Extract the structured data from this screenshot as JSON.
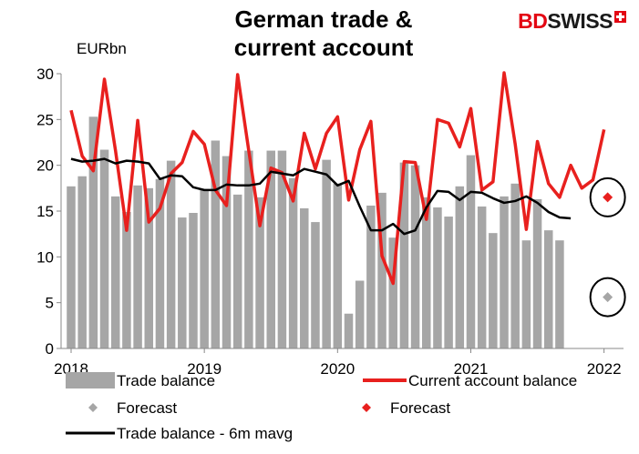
{
  "header": {
    "title_line1": "German trade &",
    "title_line2": "current account",
    "brand_part1": "BD",
    "brand_part2": "SWISS",
    "unit": "EURbn"
  },
  "colors": {
    "bar": "#a6a6a6",
    "current_account": "#e8201e",
    "mavg": "#000000",
    "forecast_trade": "#a6a6a6",
    "forecast_ca": "#e8201e",
    "brand": "#e30613"
  },
  "chart_data": {
    "type": "bar",
    "ylim": [
      0,
      30
    ],
    "yticks": [
      0,
      5,
      10,
      15,
      20,
      25,
      30
    ],
    "xticks": [
      {
        "label": "2018",
        "index": 0
      },
      {
        "label": "2019",
        "index": 12
      },
      {
        "label": "2020",
        "index": 24
      },
      {
        "label": "2021",
        "index": 36
      },
      {
        "label": "2022",
        "index": 48
      }
    ],
    "series": [
      {
        "name": "Trade balance",
        "kind": "bar",
        "values": [
          17.7,
          18.8,
          25.3,
          21.7,
          16.6,
          14.9,
          17.8,
          17.5,
          18.5,
          20.5,
          14.3,
          14.8,
          17.4,
          22.7,
          21.0,
          16.8,
          21.6,
          16.5,
          21.6,
          21.6,
          18.6,
          15.3,
          13.8,
          20.6,
          18.0,
          3.8,
          7.4,
          15.6,
          17.0,
          12.1,
          20.3,
          20.0,
          16.5,
          15.4,
          14.4,
          17.7,
          21.1,
          15.5,
          12.6,
          16.6,
          18.0,
          11.8,
          16.3,
          12.9,
          11.8
        ]
      },
      {
        "name": "Current account balance",
        "kind": "line",
        "values": [
          26.0,
          21.0,
          19.4,
          29.4,
          21.6,
          12.9,
          24.9,
          13.8,
          15.3,
          19.1,
          20.3,
          23.7,
          22.3,
          17.3,
          15.6,
          29.9,
          21.6,
          13.4,
          19.7,
          19.2,
          16.1,
          23.5,
          19.6,
          23.5,
          25.3,
          16.2,
          21.7,
          24.8,
          10.1,
          7.1,
          20.4,
          20.3,
          14.1,
          25.0,
          24.6,
          22.0,
          26.2,
          17.3,
          18.2,
          30.1,
          22.3,
          13.0,
          22.6,
          18.0,
          16.5,
          20.0,
          17.5,
          18.4,
          23.9
        ]
      },
      {
        "name": "Trade balance - 6m mavg",
        "kind": "line",
        "values": [
          20.7,
          20.4,
          20.5,
          20.7,
          20.2,
          20.5,
          20.4,
          20.2,
          18.5,
          18.9,
          18.8,
          17.6,
          17.3,
          17.3,
          17.9,
          17.8,
          17.8,
          18.0,
          19.3,
          19.1,
          18.9,
          19.6,
          19.3,
          19.0,
          17.8,
          18.3,
          15.5,
          12.9,
          12.9,
          13.6,
          12.5,
          12.9,
          15.4,
          17.2,
          17.1,
          16.2,
          17.1,
          17.0,
          16.4,
          15.9,
          16.1,
          16.6,
          15.9,
          14.9,
          14.3,
          14.2
        ]
      },
      {
        "name": "Forecast",
        "kind": "marker",
        "index": 48,
        "value": 5.6,
        "target": "trade"
      },
      {
        "name": "Forecast",
        "kind": "marker",
        "index": 48,
        "value": 16.5,
        "target": "current_account"
      }
    ],
    "legend": [
      {
        "label": "Trade balance",
        "symbol": "bar"
      },
      {
        "label": "Current account balance",
        "symbol": "red-line"
      },
      {
        "label": "Forecast",
        "symbol": "grey-diamond"
      },
      {
        "label": "Forecast",
        "symbol": "red-diamond"
      },
      {
        "label": "Trade balance - 6m mavg",
        "symbol": "black-line"
      }
    ]
  }
}
